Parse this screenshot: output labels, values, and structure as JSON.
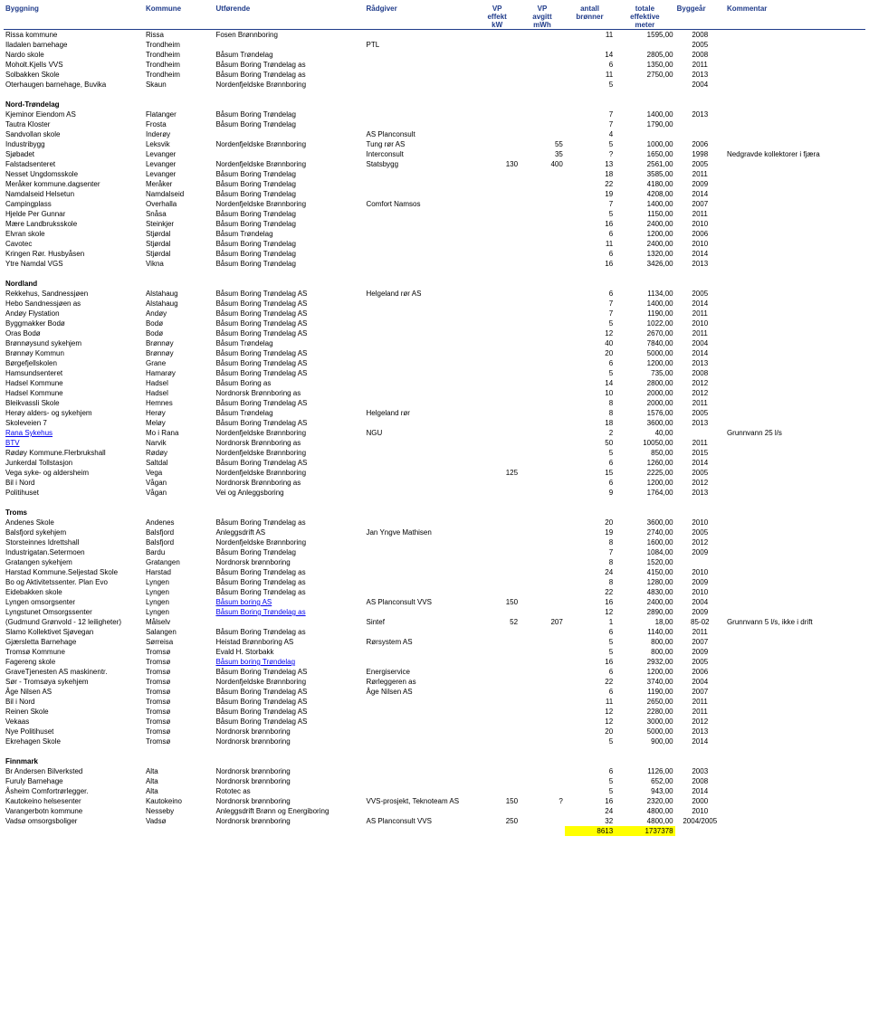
{
  "headers": {
    "h0": "Byggning",
    "h1": "Kommune",
    "h2": "Utførende",
    "h3": "Rådgiver",
    "h4a": "VP",
    "h4b": "effekt",
    "h4c": "kW",
    "h5a": "VP",
    "h5b": "avgitt",
    "h5c": "mWh",
    "h6a": "antall",
    "h6b": "brønner",
    "h7a": "totale",
    "h7b": "effektive",
    "h7c": "meter",
    "h8": "Byggeår",
    "h9": "Kommentar"
  },
  "sections": [
    {
      "rows": [
        [
          "Rissa kommune",
          "Rissa",
          "Fosen Brønnboring",
          "",
          "",
          "",
          "11",
          "1595,00",
          "2008",
          ""
        ],
        [
          "Iladalen barnehage",
          "Trondheim",
          "",
          "PTL",
          "",
          "",
          "",
          "",
          "2005",
          ""
        ],
        [
          "Nardo skole",
          "Trondheim",
          "Båsum Trøndelag",
          "",
          "",
          "",
          "14",
          "2805,00",
          "2008",
          ""
        ],
        [
          "Moholt.Kjells VVS",
          "Trondheim",
          "Båsum Boring Trøndelag as",
          "",
          "",
          "",
          "6",
          "1350,00",
          "2011",
          ""
        ],
        [
          "Solbakken Skole",
          "Trondheim",
          "Båsum Boring Trøndelag as",
          "",
          "",
          "",
          "11",
          "2750,00",
          "2013",
          ""
        ],
        [
          "Oterhaugen barnehage, Buvika",
          "Skaun",
          "Nordenfjeldske Brønnboring",
          "",
          "",
          "",
          "5",
          "",
          "2004",
          ""
        ]
      ]
    },
    {
      "title": "Nord-Trøndelag",
      "rows": [
        [
          "Kjeminor Eiendom AS",
          "Flatanger",
          "Båsum Boring Trøndelag",
          "",
          "",
          "",
          "7",
          "1400,00",
          "2013",
          ""
        ],
        [
          "Tautra Kloster",
          "Frosta",
          "Båsum Boring Trøndelag",
          "",
          "",
          "",
          "7",
          "1790,00",
          "",
          ""
        ],
        [
          "Sandvollan skole",
          "Inderøy",
          "",
          "AS Planconsult",
          "",
          "",
          "4",
          "",
          "",
          ""
        ],
        [
          "Industribygg",
          "Leksvik",
          "Nordenfjeldske Brønnboring",
          "Tung rør AS",
          "",
          "55",
          "5",
          "1000,00",
          "2006",
          ""
        ],
        [
          "Sjøbadet",
          "Levanger",
          "",
          "Interconsult",
          "",
          "35",
          "?",
          "1650,00",
          "1998",
          "Nedgravde kollektorer i fjæra"
        ],
        [
          "Falstadsenteret",
          "Levanger",
          "Nordenfjeldske Brønnboring",
          "Statsbygg",
          "130",
          "400",
          "13",
          "2561,00",
          "2005",
          ""
        ],
        [
          "Nesset Ungdomsskole",
          "Levanger",
          "Båsum Boring Trøndelag",
          "",
          "",
          "",
          "18",
          "3585,00",
          "2011",
          ""
        ],
        [
          "Meråker kommune.dagsenter",
          "Meråker",
          "Båsum Boring Trøndelag",
          "",
          "",
          "",
          "22",
          "4180,00",
          "2009",
          ""
        ],
        [
          "Namdalseid Helsetun",
          "Namdalseid",
          "Båsum Boring Trøndelag",
          "",
          "",
          "",
          "19",
          "4208,00",
          "2014",
          ""
        ],
        [
          "Campingplass",
          "Overhalla",
          "Nordenfjeldske Brønnboring",
          "Comfort Namsos",
          "",
          "",
          "7",
          "1400,00",
          "2007",
          ""
        ],
        [
          "Hjelde Per Gunnar",
          "Snåsa",
          "Båsum Boring Trøndelag",
          "",
          "",
          "",
          "5",
          "1150,00",
          "2011",
          ""
        ],
        [
          "Mære Landbruksskole",
          "Steinkjer",
          "Båsum Boring Trøndelag",
          "",
          "",
          "",
          "16",
          "2400,00",
          "2010",
          ""
        ],
        [
          "Elvran skole",
          "Stjørdal",
          "Båsum Trøndelag",
          "",
          "",
          "",
          "6",
          "1200,00",
          "2006",
          ""
        ],
        [
          "Cavotec",
          "Stjørdal",
          "Båsum Boring Trøndelag",
          "",
          "",
          "",
          "11",
          "2400,00",
          "2010",
          ""
        ],
        [
          "Kringen Rør. Husbyåsen",
          "Stjørdal",
          "Båsum Boring Trøndelag",
          "",
          "",
          "",
          "6",
          "1320,00",
          "2014",
          ""
        ],
        [
          "Ytre Namdal VGS",
          "Vikna",
          "Båsum Boring Trøndelag",
          "",
          "",
          "",
          "16",
          "3426,00",
          "2013",
          ""
        ]
      ]
    },
    {
      "title": "Nordland",
      "rows": [
        [
          "Rekkehus, Sandnessjøen",
          "Alstahaug",
          "Båsum Boring Trøndelag AS",
          "Helgeland rør AS",
          "",
          "",
          "6",
          "1134,00",
          "2005",
          ""
        ],
        [
          "Hebo Sandnessjøen as",
          "Alstahaug",
          "Båsum Boring Trøndelag AS",
          "",
          "",
          "",
          "7",
          "1400,00",
          "2014",
          ""
        ],
        [
          "Andøy Flystation",
          "Andøy",
          "Båsum Boring Trøndelag AS",
          "",
          "",
          "",
          "7",
          "1190,00",
          "2011",
          ""
        ],
        [
          "Byggmakker Bodø",
          "Bodø",
          "Båsum Boring Trøndelag AS",
          "",
          "",
          "",
          "5",
          "1022,00",
          "2010",
          ""
        ],
        [
          "Oras Bodø",
          "Bodø",
          "Båsum Boring Trøndelag AS",
          "",
          "",
          "",
          "12",
          "2670,00",
          "2011",
          ""
        ],
        [
          "Brønnøysund sykehjem",
          "Brønnøy",
          "Båsum Trøndelag",
          "",
          "",
          "",
          "40",
          "7840,00",
          "2004",
          ""
        ],
        [
          "Brønnøy Kommun",
          "Brønnøy",
          "Båsum Boring Trøndelag AS",
          "",
          "",
          "",
          "20",
          "5000,00",
          "2014",
          ""
        ],
        [
          "Børgefjellskolen",
          "Grane",
          "Båsum Boring Trøndelag AS",
          "",
          "",
          "",
          "6",
          "1200,00",
          "2013",
          ""
        ],
        [
          "Hamsundsenteret",
          "Hamarøy",
          "Båsum Boring Trøndelag AS",
          "",
          "",
          "",
          "5",
          "735,00",
          "2008",
          ""
        ],
        [
          "Hadsel Kommune",
          "Hadsel",
          "Båsum Boring as",
          "",
          "",
          "",
          "14",
          "2800,00",
          "2012",
          ""
        ],
        [
          "Hadsel Kommune",
          "Hadsel",
          "Nordnorsk Brønnboring as",
          "",
          "",
          "",
          "10",
          "2000,00",
          "2012",
          ""
        ],
        [
          "Bleikvassli Skole",
          "Hemnes",
          "Båsum Boring Trøndelag AS",
          "",
          "",
          "",
          "8",
          "2000,00",
          "2011",
          ""
        ],
        [
          "Herøy alders- og sykehjem",
          "Herøy",
          "Båsum Trøndelag",
          "Helgeland rør",
          "",
          "",
          "8",
          "1576,00",
          "2005",
          ""
        ],
        [
          "Skoleveien 7",
          "Meløy",
          "Båsum Boring Trøndelag AS",
          "",
          "",
          "",
          "18",
          "3600,00",
          "2013",
          ""
        ],
        [
          "Rana  Sykehus",
          "Mo i Rana",
          "Nordenfjeldske Brønnboring",
          "NGU",
          "",
          "",
          "2",
          "40,00",
          "",
          "Grunnvann 25 l/s",
          "link0"
        ],
        [
          "BTV",
          "Narvik",
          "Nordnorsk Brønnboring as",
          "",
          "",
          "",
          "50",
          "10050,00",
          "2011",
          "",
          "link0"
        ],
        [
          "Rødøy Kommune.Flerbrukshall",
          "Rødøy",
          "Nordenfjeldske Brønnboring",
          "",
          "",
          "",
          "5",
          "850,00",
          "2015",
          ""
        ],
        [
          "Junkerdal Tollstasjon",
          "Saltdal",
          "Båsum Boring Trøndelag AS",
          "",
          "",
          "",
          "6",
          "1260,00",
          "2014",
          ""
        ],
        [
          "Vega syke- og aldersheim",
          "Vega",
          "Nordenfjeldske Brønnboring",
          "",
          "125",
          "",
          "15",
          "2225,00",
          "2005",
          ""
        ],
        [
          "Bil i Nord",
          "Vågan",
          "Nordnorsk Brønnboring as",
          "",
          "",
          "",
          "6",
          "1200,00",
          "2012",
          ""
        ],
        [
          "Politihuset",
          "Vågan",
          "Vei og Anleggsboring",
          "",
          "",
          "",
          "9",
          "1764,00",
          "2013",
          ""
        ]
      ]
    },
    {
      "title": "Troms",
      "rows": [
        [
          "Andenes Skole",
          "Andenes",
          "Båsum Boring Trøndelag as",
          "",
          "",
          "",
          "20",
          "3600,00",
          "2010",
          ""
        ],
        [
          "Balsfjord  sykehjem",
          "Balsfjord",
          "Anleggsdrift AS",
          "Jan Yngve Mathisen",
          "",
          "",
          "19",
          "2740,00",
          "2005",
          ""
        ],
        [
          "Storsteinnes Idrettshall",
          "Balsfjord",
          "Nordenfjeldske Brønnboring",
          "",
          "",
          "",
          "8",
          "1600,00",
          "2012",
          ""
        ],
        [
          "Industrigatan.Setermoen",
          "Bardu",
          "Båsum Boring Trøndelag",
          "",
          "",
          "",
          "7",
          "1084,00",
          "2009",
          ""
        ],
        [
          "Gratangen sykehjem",
          "Gratangen",
          "Nordnorsk brønnboring",
          "",
          "",
          "",
          "8",
          "1520,00",
          "",
          ""
        ],
        [
          "Harstad Kommune.Seljestad Skole",
          "Harstad",
          "Båsum Boring Trøndelag as",
          "",
          "",
          "",
          "24",
          "4150,00",
          "2010",
          ""
        ],
        [
          "Bo og Aktivitetssenter. Plan Evo",
          "Lyngen",
          "Båsum Boring Trøndelag as",
          "",
          "",
          "",
          "8",
          "1280,00",
          "2009",
          ""
        ],
        [
          "Eidebakken skole",
          "Lyngen",
          "Båsum Boring Trøndelag as",
          "",
          "",
          "",
          "22",
          "4830,00",
          "2010",
          ""
        ],
        [
          "Lyngen omsorgsenter",
          "Lyngen",
          "Båsum boring AS",
          "AS Planconsult VVS",
          "150",
          "",
          "16",
          "2400,00",
          "2004",
          "",
          "link2"
        ],
        [
          "Lyngstunet Omsorgssenter",
          "Lyngen",
          "Båsum Boring Trøndelag as",
          "",
          "",
          "",
          "12",
          "2890,00",
          "2009",
          "",
          "link2"
        ],
        [
          "(Gudmund Grønvold - 12 leiligheter)",
          "Målselv",
          "",
          "Sintef",
          "52",
          "207",
          "1",
          "18,00",
          "85-02",
          "Grunnvann 5 l/s, ikke i drift"
        ],
        [
          "Slamo Kollektivet Sjøvegan",
          "Salangen",
          "Båsum Boring Trøndelag as",
          "",
          "",
          "",
          "6",
          "1140,00",
          "2011",
          ""
        ],
        [
          "Gjærsletta Barnehage",
          "Sørreisa",
          "Heistad Brønnboring AS",
          "Rørsystem AS",
          "",
          "",
          "5",
          "800,00",
          "2007",
          ""
        ],
        [
          "Tromsø Kommune",
          "Tromsø",
          "Evald H. Storbakk",
          "",
          "",
          "",
          "5",
          "800,00",
          "2009",
          ""
        ],
        [
          "Fagereng skole",
          "Tromsø",
          "Båsum boring Trøndelag",
          "",
          "",
          "",
          "16",
          "2932,00",
          "2005",
          "",
          "link2"
        ],
        [
          "GraveTjenesten AS maskinentr.",
          "Tromsø",
          "Båsum Boring Trøndelag AS",
          "Energiservice",
          "",
          "",
          "6",
          "1200,00",
          "2006",
          ""
        ],
        [
          "Sør - Tromsøya sykehjem",
          "Tromsø",
          "Nordenfjeldske Brønnboring",
          "Rørleggeren as",
          "",
          "",
          "22",
          "3740,00",
          "2004",
          ""
        ],
        [
          "Åge Nilsen AS",
          "Tromsø",
          "Båsum Boring Trøndelag AS",
          "Åge Nilsen AS",
          "",
          "",
          "6",
          "1190,00",
          "2007",
          ""
        ],
        [
          "Bil i Nord",
          "Tromsø",
          "Båsum Boring Trøndelag AS",
          "",
          "",
          "",
          "11",
          "2650,00",
          "2011",
          ""
        ],
        [
          "Reinen Skole",
          "Tromsø",
          "Båsum Boring Trøndelag AS",
          "",
          "",
          "",
          "12",
          "2280,00",
          "2011",
          ""
        ],
        [
          "Vekaas",
          "Tromsø",
          "Båsum Boring Trøndelag AS",
          "",
          "",
          "",
          "12",
          "3000,00",
          "2012",
          ""
        ],
        [
          "Nye Politihuset",
          "Tromsø",
          "Nordnorsk brønnboring",
          "",
          "",
          "",
          "20",
          "5000,00",
          "2013",
          ""
        ],
        [
          "Ekrehagen Skole",
          "Tromsø",
          "Nordnorsk brønnboring",
          "",
          "",
          "",
          "5",
          "900,00",
          "2014",
          ""
        ]
      ]
    },
    {
      "title": "Finnmark",
      "rows": [
        [
          "Br Andersen Bilverksted",
          "Alta",
          "Nordnorsk brønnboring",
          "",
          "",
          "",
          "6",
          "1126,00",
          "2003",
          ""
        ],
        [
          "Furuly Barnehage",
          "Alta",
          "Nordnorsk brønnboring",
          "",
          "",
          "",
          "5",
          "652,00",
          "2008",
          ""
        ],
        [
          "Åsheim Comfortrørlegger.",
          "Alta",
          "Rototec as",
          "",
          "",
          "",
          "5",
          "943,00",
          "2014",
          ""
        ],
        [
          "Kautokeino helsesenter",
          "Kautokeino",
          "Nordnorsk brønnboring",
          "VVS-prosjekt, Teknoteam AS",
          "150",
          "?",
          "16",
          "2320,00",
          "2000",
          ""
        ],
        [
          "Varangerbotn kommune",
          "Nesseby",
          "Anleggsdrift Brønn og Energiboring",
          "",
          "",
          "",
          "24",
          "4800,00",
          "2010",
          ""
        ],
        [
          "Vadsø omsorgsboliger",
          "Vadsø",
          "Nordnorsk brønnboring",
          "AS Planconsult VVS",
          "250",
          "",
          "32",
          "4800,00",
          "2004/2005",
          ""
        ]
      ]
    }
  ],
  "totals": {
    "c6": "8613",
    "c7": "1737378"
  }
}
